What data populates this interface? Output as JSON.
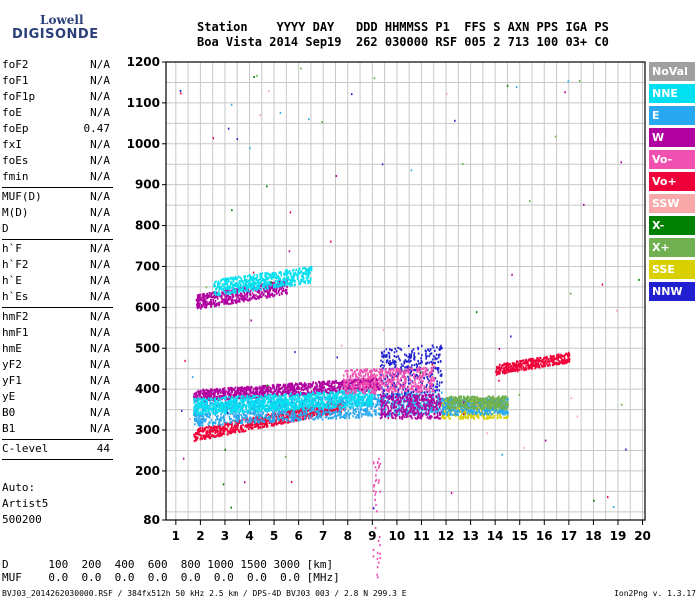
{
  "logo": {
    "line1": "Lowell",
    "line2": "DIGISONDE"
  },
  "header": {
    "labels": "Station    YYYY DAY   DDD HHMMSS P1  FFS S AXN PPS IGA PS",
    "values": "Boa Vista 2014 Sep19  262 030000 RSF 005 2 713 100 03+ C0"
  },
  "params": [
    {
      "name": "foF2",
      "value": "N/A"
    },
    {
      "name": "foF1",
      "value": "N/A"
    },
    {
      "name": "foF1p",
      "value": "N/A"
    },
    {
      "name": "foE",
      "value": "N/A"
    },
    {
      "name": "foEp",
      "value": "0.47"
    },
    {
      "name": "fxI",
      "value": "N/A"
    },
    {
      "name": "foEs",
      "value": "N/A"
    },
    {
      "name": "fmin",
      "value": "N/A"
    },
    {
      "name": "MUF(D)",
      "value": "N/A"
    },
    {
      "name": "M(D)",
      "value": "N/A"
    },
    {
      "name": "D",
      "value": "N/A"
    },
    {
      "name": "h`F",
      "value": "N/A"
    },
    {
      "name": "h`F2",
      "value": "N/A"
    },
    {
      "name": "h`E",
      "value": "N/A"
    },
    {
      "name": "h`Es",
      "value": "N/A"
    },
    {
      "name": "hmF2",
      "value": "N/A"
    },
    {
      "name": "hmF1",
      "value": "N/A"
    },
    {
      "name": "hmE",
      "value": "N/A"
    },
    {
      "name": "yF2",
      "value": "N/A"
    },
    {
      "name": "yF1",
      "value": "N/A"
    },
    {
      "name": "yE",
      "value": "N/A"
    },
    {
      "name": "B0",
      "value": "N/A"
    },
    {
      "name": "B1",
      "value": "N/A"
    },
    {
      "name": "C-level",
      "value": "44"
    }
  ],
  "auto": {
    "line1": "Auto:",
    "line2": "Artist5",
    "line3": "500200"
  },
  "muf_table": {
    "d_line": "D      100  200  400  600  800 1000 1500 3000 [km]",
    "muf_line": "MUF    0.0  0.0  0.0  0.0  0.0  0.0  0.0  0.0 [MHz]"
  },
  "footer": {
    "left": "BVJ03_2014262030000.RSF / 384fx512h 50 kHz 2.5 km / DPS-4D BVJ03 003 / 2.8 N 299.3 E",
    "right": "Ion2Png v. 1.3.17"
  },
  "legend": [
    {
      "label": "NoVal",
      "color": "#a0a0a0"
    },
    {
      "label": "NNE",
      "color": "#00e0f0"
    },
    {
      "label": "E",
      "color": "#28a8f0"
    },
    {
      "label": "W",
      "color": "#b000a0"
    },
    {
      "label": "Vo-",
      "color": "#f050b0"
    },
    {
      "label": "Vo+",
      "color": "#f00038"
    },
    {
      "label": "SSW",
      "color": "#f8a8a8"
    },
    {
      "label": "X-",
      "color": "#008000"
    },
    {
      "label": "X+",
      "color": "#70b050"
    },
    {
      "label": "SSE",
      "color": "#d8d000"
    },
    {
      "label": "NNW",
      "color": "#2020d0"
    }
  ],
  "chart_data": {
    "type": "scatter",
    "x_ticks": [
      1,
      2,
      3,
      4,
      5,
      6,
      7,
      8,
      9,
      10,
      11,
      12,
      13,
      14,
      15,
      16,
      17,
      18,
      19,
      20
    ],
    "y_ticks": [
      80,
      200,
      300,
      400,
      500,
      600,
      700,
      800,
      900,
      1000,
      1100,
      1200
    ],
    "xlim": [
      0.6,
      20.1
    ],
    "ylim": [
      80,
      1200
    ],
    "grid": true,
    "traces": [
      {
        "series": "Vo+",
        "x_range": [
          1.7,
          7.8
        ],
        "y_base": 290,
        "y_slope": 12,
        "y_spread": 30
      },
      {
        "series": "W",
        "x_range": [
          1.7,
          9.3
        ],
        "y_base": 385,
        "y_slope": 4,
        "y_spread": 30
      },
      {
        "series": "E",
        "x_range": [
          1.7,
          11.8
        ],
        "y_base": 340,
        "y_slope": 3,
        "y_spread": 55
      },
      {
        "series": "NNE",
        "x_range": [
          1.7,
          9.0
        ],
        "y_base": 360,
        "y_slope": 3,
        "y_spread": 40
      },
      {
        "series": "W",
        "x_range": [
          9.3,
          11.8
        ],
        "y_base": 360,
        "y_slope": 0,
        "y_spread": 60
      },
      {
        "series": "NNW",
        "x_range": [
          9.3,
          11.8
        ],
        "y_base": 440,
        "y_slope": 8,
        "y_spread": 120
      },
      {
        "series": "Vo-",
        "x_range": [
          7.8,
          11.5
        ],
        "y_base": 420,
        "y_slope": 2,
        "y_spread": 60
      },
      {
        "series": "SSE",
        "x_range": [
          11.8,
          14.5
        ],
        "y_base": 355,
        "y_slope": 0,
        "y_spread": 50
      },
      {
        "series": "E",
        "x_range": [
          11.8,
          14.5
        ],
        "y_base": 360,
        "y_slope": 0,
        "y_spread": 40
      },
      {
        "series": "X+",
        "x_range": [
          12.0,
          14.5
        ],
        "y_base": 370,
        "y_slope": 0,
        "y_spread": 30
      },
      {
        "series": "W",
        "x_range": [
          1.8,
          5.5
        ],
        "y_base": 615,
        "y_slope": 10,
        "y_spread": 35
      },
      {
        "series": "NNE",
        "x_range": [
          2.5,
          6.5
        ],
        "y_base": 650,
        "y_slope": 8,
        "y_spread": 40
      },
      {
        "series": "Vo+",
        "x_range": [
          14.0,
          17.0
        ],
        "y_base": 450,
        "y_slope": 10,
        "y_spread": 25
      },
      {
        "series": "Vo-",
        "x_range": [
          9.0,
          9.3
        ],
        "y_base": 90,
        "y_slope": 0,
        "y_spread": 300
      }
    ]
  }
}
